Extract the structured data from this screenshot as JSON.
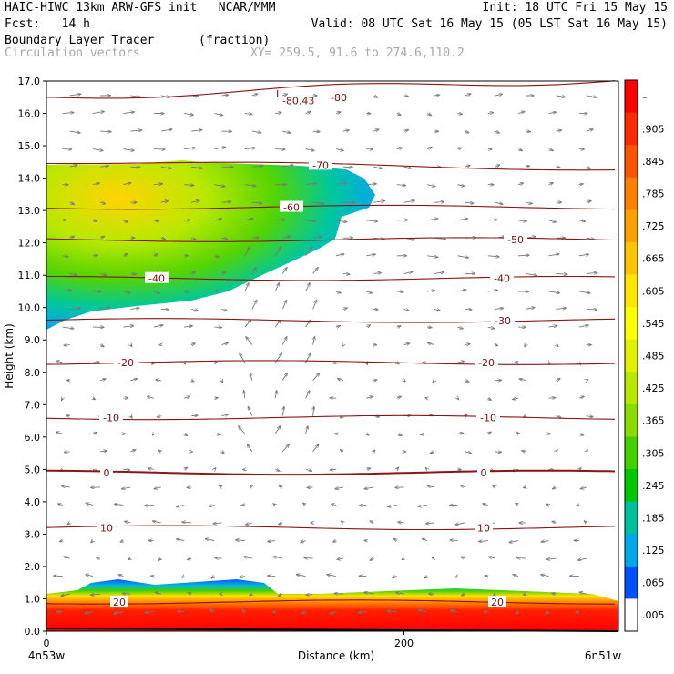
{
  "header": {
    "line1_left": "HAIC-HIWC 13km ARW-GFS init   NCAR/MMM",
    "line1_right": "Init: 18 UTC Fri 15 May 15",
    "line2_left": "Fcst:   14 h",
    "line2_right": "Valid: 08 UTC Sat 16 May 15 (05 LST Sat 16 May 15)",
    "line3_left": "Boundary Layer Tracer",
    "line3_mid": "(fraction)",
    "line4_left": "Circulation vectors",
    "line4_mid": "XY= 259.5, 91.6 to 274.6,110.2"
  },
  "chart_data": {
    "type": "heatmap",
    "title": "Boundary Layer Tracer",
    "units": "(fraction)",
    "overlay": "Circulation vectors",
    "ylabel": "Height (km)",
    "xlabel": "Distance (km)",
    "ylim": [
      0.0,
      17.0
    ],
    "xlim": [
      0,
      320
    ],
    "y_ticks": [
      "0.0",
      "1.0",
      "2.0",
      "3.0",
      "4.0",
      "5.0",
      "6.0",
      "7.0",
      "8.0",
      "9.0",
      "10.0",
      "11.0",
      "12.0",
      "13.0",
      "14.0",
      "15.0",
      "16.0",
      "17.0"
    ],
    "x_ticks": [
      {
        "value": 0,
        "label": "0"
      },
      {
        "value": 200,
        "label": "200"
      }
    ],
    "x_end_labels": {
      "left": "4n53w",
      "right": "6n51w"
    },
    "colorbar_labels": [
      "–",
      ".905",
      ".845",
      ".785",
      ".725",
      ".665",
      ".605",
      ".545",
      ".485",
      ".425",
      ".365",
      ".305",
      ".245",
      ".185",
      ".125",
      ".065",
      ".005"
    ],
    "colorbar_colors": [
      "#ff0000",
      "#ff2a00",
      "#ff5500",
      "#ff7f00",
      "#ffa000",
      "#ffc400",
      "#ffe600",
      "#ffff00",
      "#e0f000",
      "#b8e800",
      "#88dc00",
      "#44d000",
      "#00c800",
      "#00c0a0",
      "#00a8e8",
      "#0050ff",
      "#ffffff"
    ],
    "isotherms": [
      {
        "value": "20",
        "height": 0.9
      },
      {
        "value": "10",
        "height": 3.2
      },
      {
        "value": "0",
        "height": 4.9
      },
      {
        "value": "-10",
        "height": 6.6
      },
      {
        "value": "-20",
        "height": 8.3
      },
      {
        "value": "-30",
        "height": 9.6
      },
      {
        "value": "-40",
        "height": 10.9
      },
      {
        "value": "-50",
        "height": 12.1
      },
      {
        "value": "-60",
        "height": 13.1
      },
      {
        "value": "-70",
        "height": 14.4
      },
      {
        "value": "-80",
        "height": 16.5
      }
    ],
    "extra_annotations": [
      {
        "text": "L",
        "x": 130,
        "y": 16.6
      },
      {
        "text": "-80.43",
        "x": 141,
        "y": 16.4
      }
    ],
    "annotations": {
      "min_label": "L",
      "min_value": "-80.43"
    }
  }
}
